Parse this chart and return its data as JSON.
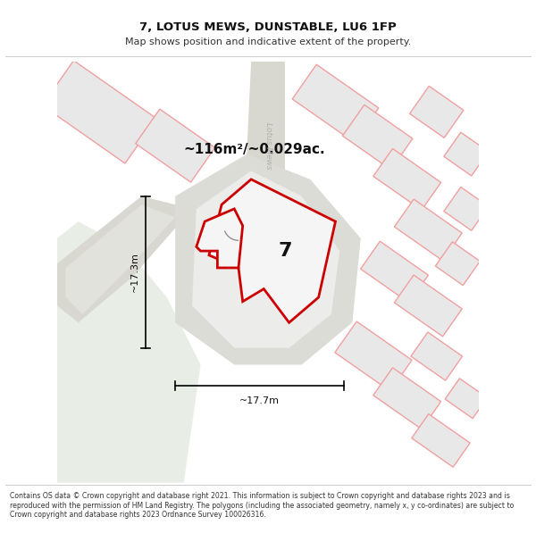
{
  "title": "7, LOTUS MEWS, DUNSTABLE, LU6 1FP",
  "subtitle": "Map shows position and indicative extent of the property.",
  "footer": "Contains OS data © Crown copyright and database right 2021. This information is subject to Crown copyright and database rights 2023 and is reproduced with the permission of HM Land Registry. The polygons (including the associated geometry, namely x, y co-ordinates) are subject to Crown copyright and database rights 2023 Ordnance Survey 100026316.",
  "area_label": "~116m²/~0.029ac.",
  "width_label": "~17.7m",
  "height_label": "~17.3m",
  "number_label": "7",
  "map_bg": "#ffffff",
  "green_color": "#e8ede5",
  "road_gray": "#d8d8d0",
  "plot_gray": "#dcdcd6",
  "main_red": "#cc0000",
  "pink_outline": "#f0a0a0",
  "bld_fill": "#e8e8e8",
  "white": "#ffffff"
}
